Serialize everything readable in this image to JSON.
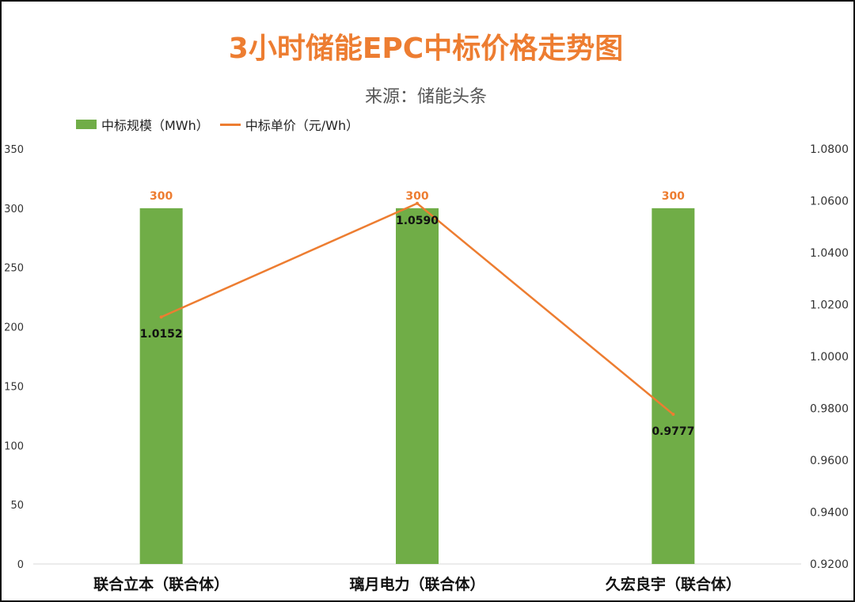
{
  "colors": {
    "bar": "#70ad47",
    "line": "#ed7d31",
    "title": "#ed7d31",
    "axis": "#d9d9d9"
  },
  "header": {
    "title": "3小时储能EPC中标价格走势图",
    "subtitle": "来源：储能头条"
  },
  "legend": {
    "bar_label": "中标规模（MWh）",
    "line_label": "中标单价（元/Wh）"
  },
  "chart_data": {
    "type": "bar",
    "categories": [
      "联合立本（联合体）",
      "璃月电力（联合体）",
      "久宏良宇（联合体）"
    ],
    "series": [
      {
        "name": "中标规模（MWh）",
        "type": "bar",
        "axis": "left",
        "values": [
          300,
          300,
          300
        ],
        "labels": [
          "300",
          "300",
          "300"
        ]
      },
      {
        "name": "中标单价（元/Wh）",
        "type": "line",
        "axis": "right",
        "values": [
          1.0152,
          1.059,
          0.9777
        ],
        "labels": [
          "1.0152",
          "1.0590",
          "0.9777"
        ]
      }
    ],
    "y_left": {
      "min": 0,
      "max": 350,
      "ticks": [
        0,
        50,
        100,
        150,
        200,
        250,
        300,
        350
      ],
      "tick_labels": [
        "0",
        "50",
        "100",
        "150",
        "200",
        "250",
        "300",
        "350"
      ]
    },
    "y_right": {
      "min": 0.92,
      "max": 1.08,
      "ticks": [
        0.92,
        0.94,
        0.96,
        0.98,
        1.0,
        1.02,
        1.04,
        1.06,
        1.08
      ],
      "tick_labels": [
        "0.9200",
        "0.9400",
        "0.9600",
        "0.9800",
        "1.0000",
        "1.0200",
        "1.0400",
        "1.0600",
        "1.0800"
      ]
    },
    "legend_position": "top-left",
    "grid": false
  }
}
